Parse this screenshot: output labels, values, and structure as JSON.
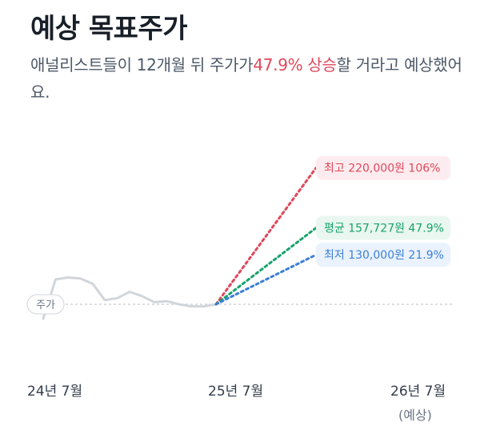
{
  "header": {
    "title": "예상 목표주가",
    "desc_before": "애널리스트들이 12개월 뒤 주가가",
    "desc_highlight": "47.9% 상승",
    "desc_after": "할 거라고 예상했어요."
  },
  "colors": {
    "high": "#e0475a",
    "avg": "#17a36b",
    "low": "#3b7fd6",
    "price_line": "#d1d6db",
    "baseline": "#d1d6db"
  },
  "chart_data": {
    "type": "line",
    "x_ticks": [
      "24년 7월",
      "25년 7월",
      "26년 7월"
    ],
    "x_tick_note": "(예상)",
    "price_label": "주가",
    "price_series": [
      0.6,
      0.98,
      1.0,
      0.99,
      0.94,
      0.78,
      0.8,
      0.86,
      0.82,
      0.76,
      0.77,
      0.74,
      0.72,
      0.72,
      0.74
    ],
    "current_value": 0.74,
    "targets": [
      {
        "key": "high",
        "label": "최고 220,000원 106%",
        "value": 2.06
      },
      {
        "key": "avg",
        "label": "평균 157,727원 47.9%",
        "value": 1.479
      },
      {
        "key": "low",
        "label": "최저 130,000원 21.9%",
        "value": 1.219
      }
    ]
  }
}
